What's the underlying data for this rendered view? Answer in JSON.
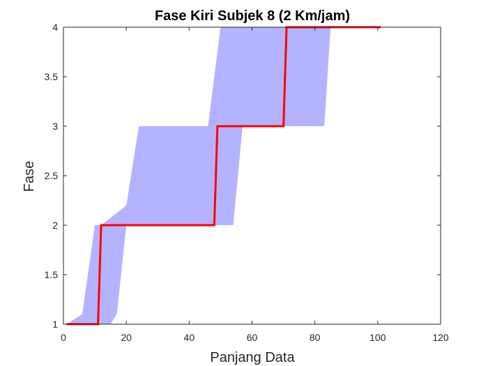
{
  "chart_data": {
    "type": "area",
    "title": "Fase Kiri Subjek 8 (2 Km/jam)",
    "xlabel": "Panjang Data",
    "ylabel": "Fase",
    "xlim": [
      0,
      120
    ],
    "ylim": [
      1,
      4
    ],
    "xticks": [
      "0",
      "20",
      "40",
      "60",
      "80",
      "100",
      "120"
    ],
    "yticks": [
      "1",
      "1.5",
      "2",
      "2.5",
      "3",
      "3.5",
      "4"
    ],
    "grid": false,
    "colors": {
      "band": "#b3b3ff",
      "line": "#ff0000",
      "axis": "#262626"
    },
    "band": {
      "upper": [
        [
          1,
          1
        ],
        [
          6,
          1.1
        ],
        [
          10,
          2
        ],
        [
          12,
          2
        ],
        [
          20,
          2.2
        ],
        [
          24,
          3
        ],
        [
          46,
          3
        ],
        [
          50,
          4
        ],
        [
          86,
          4
        ]
      ],
      "lower": [
        [
          1,
          1
        ],
        [
          15,
          1
        ],
        [
          17,
          1.1
        ],
        [
          20,
          2
        ],
        [
          54,
          2
        ],
        [
          57,
          3
        ],
        [
          83,
          3
        ],
        [
          85,
          4
        ],
        [
          86,
          4
        ]
      ]
    },
    "series": [
      {
        "points": [
          [
            1,
            1
          ],
          [
            11,
            1
          ],
          [
            12,
            2
          ],
          [
            48,
            2
          ],
          [
            49,
            3
          ],
          [
            70,
            3
          ],
          [
            71,
            4
          ],
          [
            101,
            4
          ]
        ]
      }
    ]
  }
}
